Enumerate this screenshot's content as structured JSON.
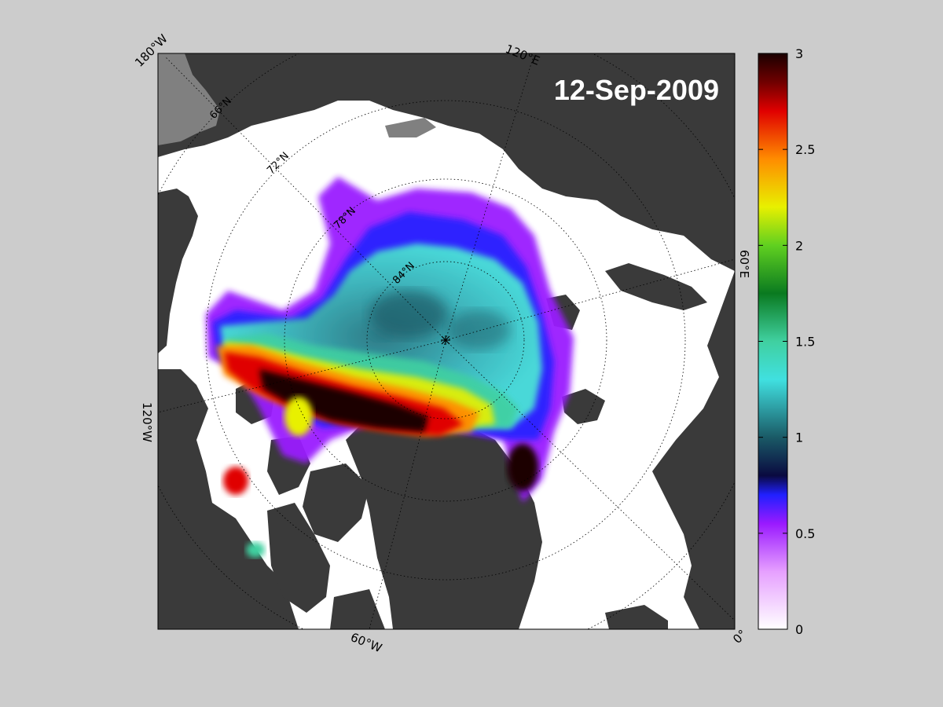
{
  "map": {
    "date_label": "12-Sep-2009",
    "pole_marker": "north-pole-asterisk",
    "longitude_labels": [
      "180°W",
      "120°E",
      "60°E",
      "0°",
      "60°W",
      "120°W"
    ],
    "latitude_labels": [
      "66°N",
      "72°N",
      "78°N",
      "84°N"
    ],
    "colors": {
      "background": "#cccccc",
      "land": "#3a3a3a",
      "land_light": "#808080",
      "open_water": "#ffffff",
      "frame": "#000000"
    }
  },
  "colorbar": {
    "min": 0,
    "max": 3,
    "tick_labels": [
      "0",
      "0.5",
      "1",
      "1.5",
      "2",
      "2.5",
      "3"
    ],
    "colormap_stops": [
      {
        "value": 0.0,
        "color": "#ffffff"
      },
      {
        "value": 0.3,
        "color": "#e6a0ff"
      },
      {
        "value": 0.55,
        "color": "#9a1aff"
      },
      {
        "value": 0.7,
        "color": "#2020ff"
      },
      {
        "value": 0.8,
        "color": "#0a0a40"
      },
      {
        "value": 1.0,
        "color": "#1a5a66"
      },
      {
        "value": 1.3,
        "color": "#40e0e0"
      },
      {
        "value": 1.5,
        "color": "#40d0a0"
      },
      {
        "value": 1.75,
        "color": "#0a7a20"
      },
      {
        "value": 2.0,
        "color": "#60d020"
      },
      {
        "value": 2.2,
        "color": "#e8f000"
      },
      {
        "value": 2.45,
        "color": "#ff8c00"
      },
      {
        "value": 2.7,
        "color": "#e00000"
      },
      {
        "value": 2.85,
        "color": "#700000"
      },
      {
        "value": 3.0,
        "color": "#1a0000"
      }
    ]
  }
}
